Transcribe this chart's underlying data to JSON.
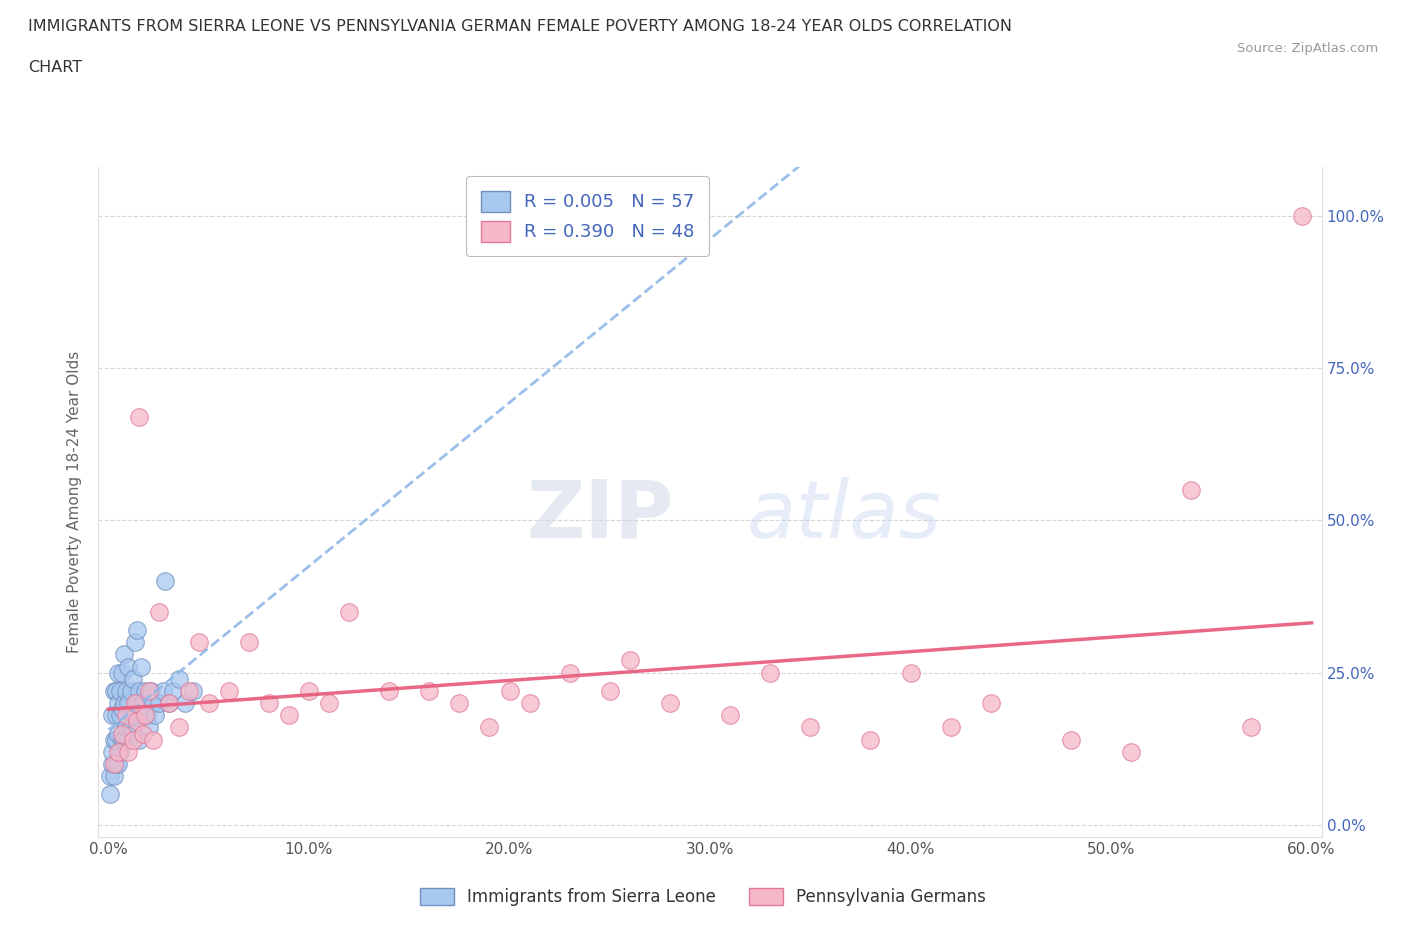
{
  "title_line1": "IMMIGRANTS FROM SIERRA LEONE VS PENNSYLVANIA GERMAN FEMALE POVERTY AMONG 18-24 YEAR OLDS CORRELATION",
  "title_line2": "CHART",
  "source": "Source: ZipAtlas.com",
  "ylabel": "Female Poverty Among 18-24 Year Olds",
  "xlim": [
    -0.005,
    0.605
  ],
  "ylim": [
    -0.02,
    1.08
  ],
  "xtick_labels": [
    "0.0%",
    "10.0%",
    "20.0%",
    "30.0%",
    "40.0%",
    "50.0%",
    "60.0%"
  ],
  "xtick_vals": [
    0.0,
    0.1,
    0.2,
    0.3,
    0.4,
    0.5,
    0.6
  ],
  "ytick_labels": [
    "0.0%",
    "25.0%",
    "50.0%",
    "75.0%",
    "100.0%"
  ],
  "ytick_vals": [
    0.0,
    0.25,
    0.5,
    0.75,
    1.0
  ],
  "blue_color": "#a8c8f0",
  "pink_color": "#f5b8c8",
  "blue_edge": "#7090c0",
  "pink_edge": "#e07898",
  "trend_blue_color": "#90b8e8",
  "trend_pink_color": "#e86080",
  "R_blue": 0.005,
  "N_blue": 57,
  "R_pink": 0.39,
  "N_pink": 48,
  "legend_label_blue": "Immigrants from Sierra Leone",
  "legend_label_pink": "Pennsylvania Germans",
  "watermark": "ZIPatlas",
  "background_color": "#ffffff",
  "grid_color": "#cccccc",
  "right_tick_color": "#4466bb",
  "blue_x": [
    0.001,
    0.001,
    0.002,
    0.002,
    0.002,
    0.003,
    0.003,
    0.003,
    0.004,
    0.004,
    0.004,
    0.004,
    0.005,
    0.005,
    0.005,
    0.005,
    0.006,
    0.006,
    0.006,
    0.007,
    0.007,
    0.007,
    0.008,
    0.008,
    0.008,
    0.009,
    0.009,
    0.01,
    0.01,
    0.01,
    0.011,
    0.011,
    0.012,
    0.012,
    0.013,
    0.013,
    0.014,
    0.014,
    0.015,
    0.015,
    0.016,
    0.016,
    0.017,
    0.018,
    0.019,
    0.02,
    0.021,
    0.022,
    0.023,
    0.025,
    0.027,
    0.028,
    0.03,
    0.032,
    0.035,
    0.038,
    0.042
  ],
  "blue_y": [
    0.05,
    0.08,
    0.1,
    0.12,
    0.18,
    0.08,
    0.14,
    0.22,
    0.1,
    0.14,
    0.18,
    0.22,
    0.1,
    0.15,
    0.2,
    0.25,
    0.12,
    0.18,
    0.22,
    0.14,
    0.19,
    0.25,
    0.14,
    0.2,
    0.28,
    0.16,
    0.22,
    0.14,
    0.2,
    0.26,
    0.16,
    0.22,
    0.15,
    0.24,
    0.18,
    0.3,
    0.2,
    0.32,
    0.14,
    0.22,
    0.18,
    0.26,
    0.2,
    0.22,
    0.18,
    0.16,
    0.22,
    0.2,
    0.18,
    0.2,
    0.22,
    0.4,
    0.2,
    0.22,
    0.24,
    0.2,
    0.22
  ],
  "pink_x": [
    0.003,
    0.005,
    0.007,
    0.009,
    0.01,
    0.012,
    0.013,
    0.014,
    0.015,
    0.017,
    0.018,
    0.02,
    0.022,
    0.025,
    0.03,
    0.035,
    0.04,
    0.045,
    0.05,
    0.06,
    0.07,
    0.08,
    0.09,
    0.1,
    0.11,
    0.12,
    0.14,
    0.16,
    0.175,
    0.19,
    0.2,
    0.21,
    0.23,
    0.25,
    0.26,
    0.28,
    0.31,
    0.33,
    0.35,
    0.38,
    0.4,
    0.42,
    0.44,
    0.48,
    0.51,
    0.54,
    0.57,
    0.595
  ],
  "pink_y": [
    0.1,
    0.12,
    0.15,
    0.18,
    0.12,
    0.14,
    0.2,
    0.17,
    0.67,
    0.15,
    0.18,
    0.22,
    0.14,
    0.35,
    0.2,
    0.16,
    0.22,
    0.3,
    0.2,
    0.22,
    0.3,
    0.2,
    0.18,
    0.22,
    0.2,
    0.35,
    0.22,
    0.22,
    0.2,
    0.16,
    0.22,
    0.2,
    0.25,
    0.22,
    0.27,
    0.2,
    0.18,
    0.25,
    0.16,
    0.14,
    0.25,
    0.16,
    0.2,
    0.14,
    0.12,
    0.55,
    0.16,
    1.0
  ]
}
